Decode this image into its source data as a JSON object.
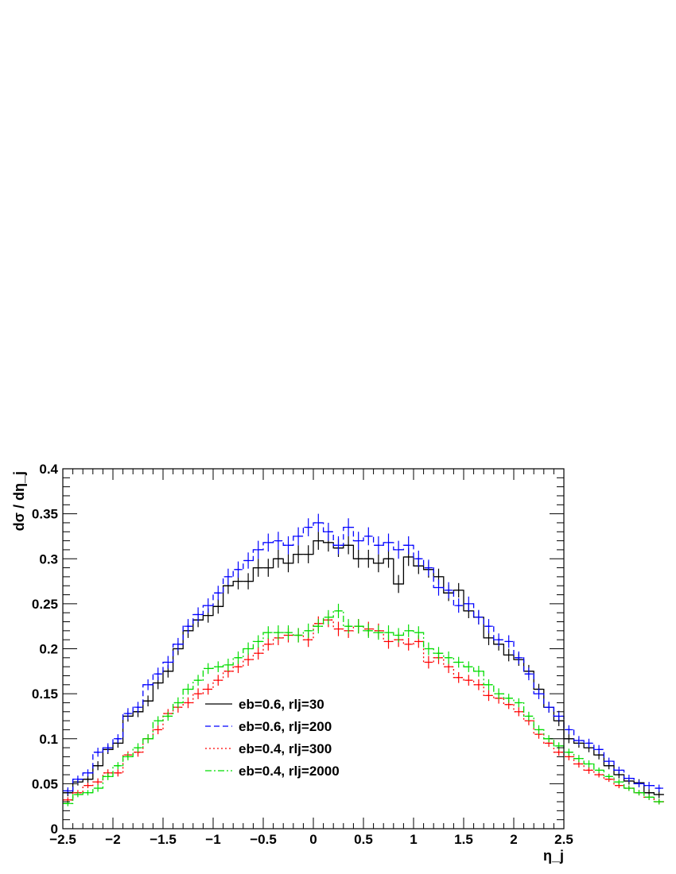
{
  "chart_data": {
    "type": "line",
    "title": "",
    "xlabel": "η_j",
    "ylabel": "dσ / dη_j",
    "xlim": [
      -2.5,
      2.5
    ],
    "ylim": [
      0,
      0.4
    ],
    "xticks": [
      "−2.5",
      "−2",
      "−1.5",
      "−1",
      "−0.5",
      "0",
      "0.5",
      "1",
      "1.5",
      "2",
      "2.5"
    ],
    "yticks": [
      "0",
      "0.05",
      "0.1",
      "0.15",
      "0.2",
      "0.25",
      "0.3",
      "0.35",
      "0.4"
    ],
    "legend_position": "center-left",
    "bin_edges_start": -2.5,
    "bin_width": 0.1,
    "series": [
      {
        "name": "eb=0.6, rlj=30",
        "color": "#000000",
        "dash": "",
        "values": [
          0.04,
          0.052,
          0.055,
          0.07,
          0.088,
          0.095,
          0.125,
          0.13,
          0.142,
          0.162,
          0.175,
          0.2,
          0.22,
          0.232,
          0.237,
          0.247,
          0.27,
          0.275,
          0.275,
          0.29,
          0.29,
          0.3,
          0.295,
          0.305,
          0.305,
          0.32,
          0.318,
          0.312,
          0.315,
          0.3,
          0.3,
          0.295,
          0.3,
          0.272,
          0.302,
          0.292,
          0.288,
          0.28,
          0.262,
          0.265,
          0.242,
          0.235,
          0.212,
          0.205,
          0.193,
          0.188,
          0.175,
          0.155,
          0.135,
          0.12,
          0.1,
          0.095,
          0.09,
          0.082,
          0.07,
          0.06,
          0.053,
          0.051,
          0.04,
          0.038
        ],
        "errors": [
          0.004,
          0.004,
          0.004,
          0.005,
          0.005,
          0.005,
          0.006,
          0.006,
          0.006,
          0.007,
          0.007,
          0.007,
          0.008,
          0.008,
          0.008,
          0.008,
          0.009,
          0.009,
          0.009,
          0.01,
          0.01,
          0.01,
          0.01,
          0.01,
          0.01,
          0.01,
          0.01,
          0.01,
          0.01,
          0.01,
          0.01,
          0.01,
          0.01,
          0.01,
          0.01,
          0.009,
          0.009,
          0.009,
          0.009,
          0.008,
          0.008,
          0.008,
          0.008,
          0.007,
          0.007,
          0.007,
          0.007,
          0.006,
          0.006,
          0.006,
          0.005,
          0.005,
          0.005,
          0.005,
          0.004,
          0.004,
          0.004,
          0.004,
          0.004,
          0.004
        ]
      },
      {
        "name": "eb=0.6, rlj=200",
        "color": "#0000ff",
        "dash": "7,4",
        "values": [
          0.042,
          0.055,
          0.062,
          0.085,
          0.09,
          0.1,
          0.128,
          0.135,
          0.16,
          0.172,
          0.185,
          0.205,
          0.225,
          0.238,
          0.248,
          0.262,
          0.28,
          0.288,
          0.298,
          0.31,
          0.318,
          0.32,
          0.315,
          0.325,
          0.335,
          0.34,
          0.33,
          0.315,
          0.335,
          0.32,
          0.325,
          0.315,
          0.318,
          0.31,
          0.315,
          0.3,
          0.29,
          0.268,
          0.265,
          0.248,
          0.25,
          0.235,
          0.225,
          0.21,
          0.208,
          0.19,
          0.172,
          0.15,
          0.135,
          0.125,
          0.11,
          0.098,
          0.095,
          0.088,
          0.075,
          0.065,
          0.056,
          0.05,
          0.048,
          0.045
        ],
        "errors": [
          0.004,
          0.004,
          0.004,
          0.005,
          0.005,
          0.005,
          0.006,
          0.006,
          0.006,
          0.007,
          0.007,
          0.007,
          0.008,
          0.008,
          0.008,
          0.008,
          0.009,
          0.009,
          0.009,
          0.01,
          0.01,
          0.01,
          0.01,
          0.01,
          0.01,
          0.01,
          0.01,
          0.01,
          0.01,
          0.01,
          0.01,
          0.01,
          0.01,
          0.01,
          0.01,
          0.009,
          0.009,
          0.009,
          0.009,
          0.008,
          0.008,
          0.008,
          0.008,
          0.007,
          0.007,
          0.007,
          0.007,
          0.006,
          0.006,
          0.006,
          0.005,
          0.005,
          0.005,
          0.005,
          0.004,
          0.004,
          0.004,
          0.004,
          0.004,
          0.004
        ]
      },
      {
        "name": "eb=0.4, rlj=300",
        "color": "#ff0000",
        "dash": "2,3",
        "values": [
          0.032,
          0.04,
          0.048,
          0.052,
          0.062,
          0.062,
          0.082,
          0.085,
          0.1,
          0.11,
          0.128,
          0.135,
          0.14,
          0.15,
          0.155,
          0.165,
          0.175,
          0.18,
          0.188,
          0.195,
          0.205,
          0.212,
          0.215,
          0.215,
          0.21,
          0.228,
          0.232,
          0.222,
          0.22,
          0.225,
          0.222,
          0.22,
          0.208,
          0.21,
          0.205,
          0.208,
          0.185,
          0.19,
          0.18,
          0.168,
          0.165,
          0.16,
          0.148,
          0.145,
          0.138,
          0.13,
          0.12,
          0.105,
          0.095,
          0.085,
          0.08,
          0.072,
          0.065,
          0.06,
          0.055,
          0.048,
          0.045,
          0.04,
          0.035,
          0.03
        ],
        "errors": [
          0.003,
          0.003,
          0.003,
          0.004,
          0.004,
          0.004,
          0.004,
          0.005,
          0.005,
          0.005,
          0.005,
          0.006,
          0.006,
          0.006,
          0.006,
          0.006,
          0.007,
          0.007,
          0.007,
          0.007,
          0.007,
          0.008,
          0.008,
          0.008,
          0.008,
          0.008,
          0.008,
          0.008,
          0.008,
          0.008,
          0.008,
          0.008,
          0.008,
          0.008,
          0.007,
          0.007,
          0.007,
          0.007,
          0.007,
          0.006,
          0.006,
          0.006,
          0.006,
          0.006,
          0.005,
          0.005,
          0.005,
          0.005,
          0.004,
          0.004,
          0.004,
          0.004,
          0.004,
          0.003,
          0.003,
          0.003,
          0.003,
          0.003,
          0.003,
          0.003
        ]
      },
      {
        "name": "eb=0.4, rlj=2000",
        "color": "#00dd00",
        "dash": "8,3,2,3",
        "values": [
          0.028,
          0.038,
          0.04,
          0.045,
          0.058,
          0.07,
          0.08,
          0.09,
          0.1,
          0.12,
          0.125,
          0.14,
          0.155,
          0.165,
          0.178,
          0.18,
          0.182,
          0.19,
          0.2,
          0.208,
          0.218,
          0.218,
          0.218,
          0.215,
          0.22,
          0.225,
          0.235,
          0.242,
          0.225,
          0.225,
          0.22,
          0.218,
          0.218,
          0.215,
          0.22,
          0.218,
          0.2,
          0.195,
          0.19,
          0.185,
          0.18,
          0.175,
          0.16,
          0.15,
          0.145,
          0.14,
          0.125,
          0.11,
          0.1,
          0.092,
          0.085,
          0.078,
          0.072,
          0.065,
          0.058,
          0.052,
          0.045,
          0.04,
          0.035,
          0.03
        ],
        "errors": [
          0.003,
          0.003,
          0.003,
          0.004,
          0.004,
          0.004,
          0.004,
          0.005,
          0.005,
          0.005,
          0.005,
          0.006,
          0.006,
          0.006,
          0.006,
          0.006,
          0.007,
          0.007,
          0.007,
          0.007,
          0.007,
          0.008,
          0.008,
          0.008,
          0.008,
          0.008,
          0.008,
          0.008,
          0.008,
          0.008,
          0.008,
          0.008,
          0.008,
          0.008,
          0.007,
          0.007,
          0.007,
          0.007,
          0.007,
          0.006,
          0.006,
          0.006,
          0.006,
          0.006,
          0.005,
          0.005,
          0.005,
          0.005,
          0.004,
          0.004,
          0.004,
          0.004,
          0.004,
          0.003,
          0.003,
          0.003,
          0.003,
          0.003,
          0.003,
          0.003
        ]
      }
    ]
  }
}
